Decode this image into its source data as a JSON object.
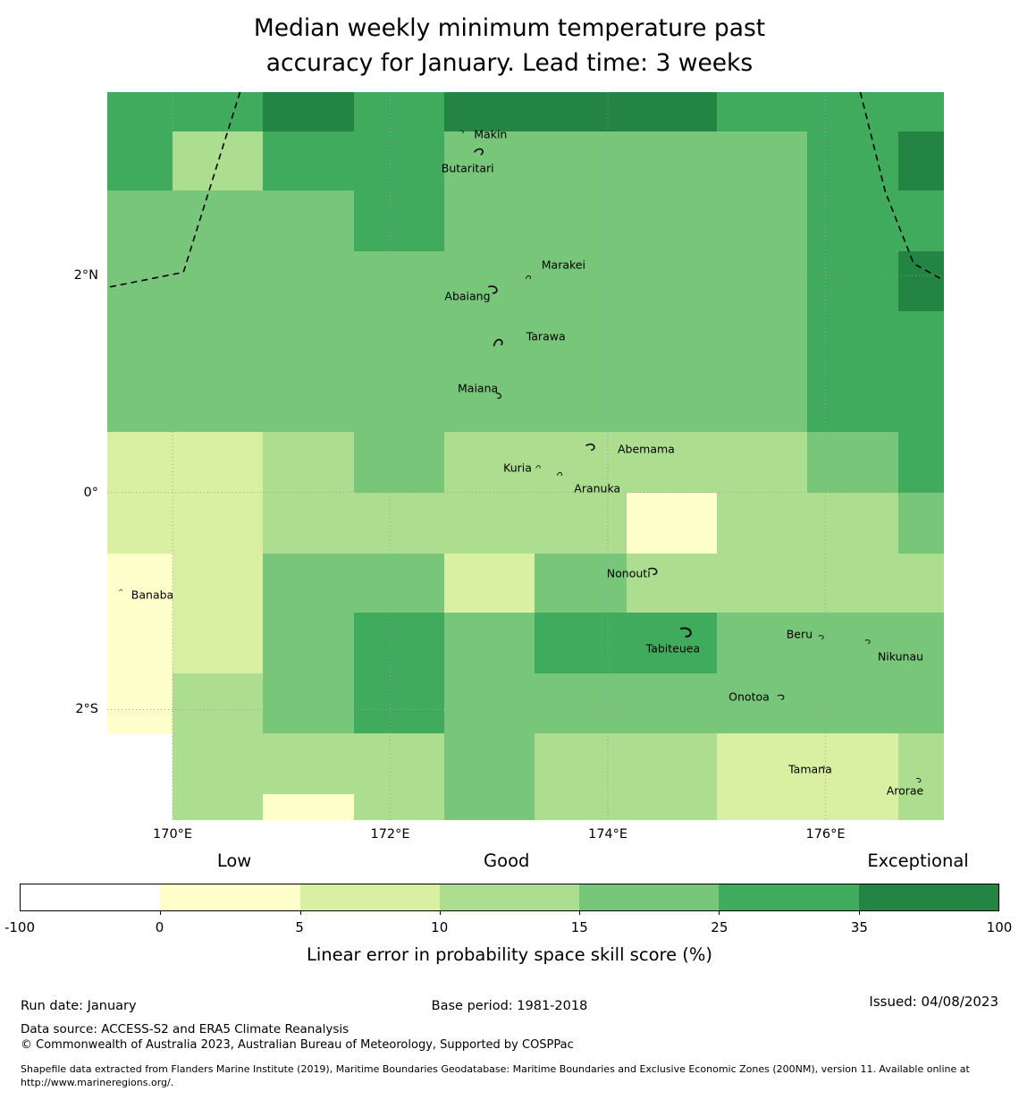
{
  "title": {
    "line1": "Median weekly minimum temperature past",
    "line2": "accuracy for January. Lead time: 3 weeks"
  },
  "axes": {
    "x_ticks": [
      {
        "label": "170°E",
        "lon": 170
      },
      {
        "label": "172°E",
        "lon": 172
      },
      {
        "label": "174°E",
        "lon": 174
      },
      {
        "label": "176°E",
        "lon": 176
      }
    ],
    "y_ticks": [
      {
        "label": "2°N",
        "lat": 2
      },
      {
        "label": "0°",
        "lat": 0
      },
      {
        "label": "2°S",
        "lat": -2
      }
    ]
  },
  "colorbar": {
    "categories": [
      {
        "label": "Low",
        "pct": 21.9
      },
      {
        "label": "Good",
        "pct": 49.7
      },
      {
        "label": "Exceptional",
        "pct": 91.7
      }
    ],
    "tick_labels": [
      "-100",
      "0",
      "5",
      "10",
      "15",
      "25",
      "35",
      "100"
    ],
    "label": "Linear error in probability space skill score (%)"
  },
  "footer": {
    "run_date": "Run date: January",
    "base_period": "Base period: 1981-2018",
    "issued": "Issued: 04/08/2023",
    "data_source": "Data source: ACCESS-S2 and ERA5 Climate Reanalysis",
    "copyright": "© Commonwealth of Australia 2023, Australian Bureau of Meteorology, Supported by COSPPac",
    "shapefile_note": "Shapefile data extracted from Flanders Marine Institute (2019), Maritime Boundaries Geodatabase: Maritime Boundaries and Exclusive Economic Zones (200NM), version 11. Available online at http://www.marineregions.org/."
  },
  "palette": {
    "graticule": "#9e9e9e",
    "eez_line": "#000000",
    "text": "#000000"
  },
  "chart_data": {
    "type": "heatmap",
    "title": "Median weekly minimum temperature past accuracy for January. Lead time: 3 weeks",
    "variable": "Median weekly minimum temperature",
    "month": "January",
    "lead_time": "3 weeks",
    "colorbar_label": "Linear error in probability space skill score (%)",
    "skill_bins": {
      "edges": [
        -100,
        0,
        5,
        10,
        15,
        25,
        35,
        100
      ],
      "colors": [
        "#ffffff",
        "#ffffcc",
        "#d9f0a3",
        "#addd8e",
        "#78c679",
        "#41ab5d",
        "#238443"
      ],
      "bin_representative_values": [
        -50,
        2.5,
        7.5,
        12.5,
        20,
        30,
        67.5
      ],
      "category_labels": [
        "Low",
        "Good",
        "Exceptional"
      ]
    },
    "lon_range": [
      169.4,
      177.08
    ],
    "lat_range_top_bottom": [
      3.69,
      -3.01
    ],
    "lon_edges": [
      169.4,
      170.0,
      170.83,
      171.67,
      172.5,
      173.33,
      174.17,
      175.0,
      175.83,
      176.67,
      177.08
    ],
    "lat_edges": [
      3.69,
      3.33,
      2.78,
      2.22,
      1.67,
      1.11,
      0.56,
      0.0,
      -0.56,
      -1.11,
      -1.67,
      -2.22,
      -2.78,
      -3.01
    ],
    "grid_bin_index": [
      [
        5,
        5,
        6,
        5,
        6,
        6,
        6,
        5,
        5,
        5
      ],
      [
        5,
        3,
        5,
        5,
        4,
        4,
        4,
        4,
        5,
        6
      ],
      [
        4,
        4,
        4,
        5,
        4,
        4,
        4,
        4,
        5,
        5
      ],
      [
        4,
        4,
        4,
        4,
        4,
        4,
        4,
        4,
        5,
        6
      ],
      [
        4,
        4,
        4,
        4,
        4,
        4,
        4,
        4,
        5,
        5
      ],
      [
        4,
        4,
        4,
        4,
        4,
        4,
        4,
        4,
        5,
        5
      ],
      [
        2,
        2,
        3,
        4,
        3,
        3,
        3,
        3,
        4,
        5
      ],
      [
        2,
        2,
        3,
        3,
        3,
        3,
        1,
        3,
        3,
        4
      ],
      [
        1,
        2,
        4,
        4,
        2,
        4,
        3,
        3,
        3,
        3
      ],
      [
        1,
        2,
        4,
        5,
        4,
        5,
        5,
        4,
        4,
        4
      ],
      [
        1,
        3,
        4,
        5,
        4,
        4,
        4,
        4,
        4,
        4
      ],
      [
        0,
        3,
        3,
        3,
        4,
        3,
        3,
        2,
        2,
        3
      ],
      [
        0,
        3,
        1,
        3,
        4,
        3,
        3,
        2,
        2,
        3
      ]
    ],
    "graticule": {
      "lons": [
        170,
        172,
        174,
        176
      ],
      "lats": [
        2,
        0,
        -2
      ]
    },
    "eez_boundaries": [
      [
        [
          170.62,
          3.69
        ],
        [
          170.1,
          2.03
        ],
        [
          169.4,
          1.89
        ]
      ],
      [
        [
          176.32,
          3.69
        ],
        [
          176.55,
          2.77
        ],
        [
          176.81,
          2.11
        ],
        [
          177.08,
          1.96
        ]
      ]
    ],
    "islands": [
      {
        "name": "Makin",
        "label_lon": 172.77,
        "label_lat": 3.3,
        "mark_lon": 172.66,
        "mark_lat": 3.33,
        "mark_size": 5,
        "mark_angle": 45
      },
      {
        "name": "Butaritari",
        "label_lon": 172.47,
        "label_lat": 2.99,
        "mark_lon": 172.82,
        "mark_lat": 3.15,
        "mark_size": 12,
        "mark_angle": 20
      },
      {
        "name": "Marakei",
        "label_lon": 173.39,
        "label_lat": 2.1,
        "mark_lon": 173.27,
        "mark_lat": 1.98,
        "mark_size": 7,
        "mark_angle": 0
      },
      {
        "name": "Abaiang",
        "label_lon": 172.5,
        "label_lat": 1.81,
        "mark_lon": 172.95,
        "mark_lat": 1.88,
        "mark_size": 13,
        "mark_angle": 55
      },
      {
        "name": "Tarawa",
        "label_lon": 173.25,
        "label_lat": 1.44,
        "mark_lon": 172.99,
        "mark_lat": 1.38,
        "mark_size": 13,
        "mark_angle": -10
      },
      {
        "name": "Maiana",
        "label_lon": 172.62,
        "label_lat": 0.96,
        "mark_lon": 173.0,
        "mark_lat": 0.9,
        "mark_size": 9,
        "mark_angle": 70
      },
      {
        "name": "Abemama",
        "label_lon": 174.09,
        "label_lat": 0.4,
        "mark_lon": 173.84,
        "mark_lat": 0.43,
        "mark_size": 12,
        "mark_angle": 40
      },
      {
        "name": "Kuria",
        "label_lon": 173.04,
        "label_lat": 0.23,
        "mark_lon": 173.36,
        "mark_lat": 0.24,
        "mark_size": 6,
        "mark_angle": 0
      },
      {
        "name": "Aranuka",
        "label_lon": 173.69,
        "label_lat": 0.04,
        "mark_lon": 173.56,
        "mark_lat": 0.17,
        "mark_size": 7,
        "mark_angle": 0
      },
      {
        "name": "Nonouti",
        "label_lon": 173.99,
        "label_lat": -0.74,
        "mark_lon": 174.42,
        "mark_lat": -0.72,
        "mark_size": 12,
        "mark_angle": 50
      },
      {
        "name": "Banaba",
        "label_lon": 169.62,
        "label_lat": -0.94,
        "mark_lon": 169.52,
        "mark_lat": -0.9,
        "mark_size": 4,
        "mark_angle": 0
      },
      {
        "name": "Tabiteuea",
        "label_lon": 174.35,
        "label_lat": -1.44,
        "mark_lon": 174.72,
        "mark_lat": -1.28,
        "mark_size": 16,
        "mark_angle": 55
      },
      {
        "name": "Beru",
        "label_lon": 175.64,
        "label_lat": -1.3,
        "mark_lon": 175.96,
        "mark_lat": -1.33,
        "mark_size": 7,
        "mark_angle": 45
      },
      {
        "name": "Nikunau",
        "label_lon": 176.48,
        "label_lat": -1.51,
        "mark_lon": 176.39,
        "mark_lat": -1.37,
        "mark_size": 7,
        "mark_angle": 45
      },
      {
        "name": "Onotoa",
        "label_lon": 175.11,
        "label_lat": -1.88,
        "mark_lon": 175.59,
        "mark_lat": -1.88,
        "mark_size": 9,
        "mark_angle": 45
      },
      {
        "name": "Tamana",
        "label_lon": 175.66,
        "label_lat": -2.55,
        "mark_lon": 175.98,
        "mark_lat": -2.53,
        "mark_size": 5,
        "mark_angle": 0
      },
      {
        "name": "Arorae",
        "label_lon": 176.56,
        "label_lat": -2.75,
        "mark_lon": 176.86,
        "mark_lat": -2.65,
        "mark_size": 7,
        "mark_angle": 60
      }
    ]
  }
}
